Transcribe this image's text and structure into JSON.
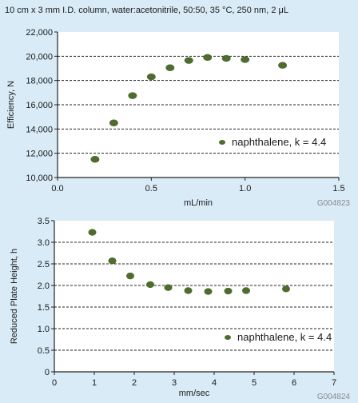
{
  "figure": {
    "title": "10 cm x 3 mm I.D. column, water:acetonitrile, 50:50, 35 °C, 250 nm, 2 μL"
  },
  "colors": {
    "background": "#d9ebf6",
    "plot_area": "#ffffff",
    "marker": "#4f6b2e",
    "axis": "#222222",
    "gridline": "#222222",
    "code_text": "#8a8a8a"
  },
  "chart_data": [
    {
      "type": "scatter",
      "xlabel": "mL/min",
      "ylabel": "Efficiency, N",
      "xlim": [
        0,
        1.5
      ],
      "ylim": [
        10000,
        22000
      ],
      "x_ticks": [
        0,
        0.5,
        1.0,
        1.5
      ],
      "x_tick_labels": [
        "0.0",
        "0.5",
        "1.0",
        "1.5"
      ],
      "y_ticks": [
        10000,
        12000,
        14000,
        16000,
        18000,
        20000,
        22000
      ],
      "y_tick_labels": [
        "10,000",
        "12,000",
        "14,000",
        "16,000",
        "18,000",
        "20,000",
        "22,000"
      ],
      "grid": "horizontal dashed",
      "legend": {
        "label": "naphthalene, k = 4.4",
        "position": "bottom-right"
      },
      "code": "G004823",
      "series": [
        {
          "name": "naphthalene, k = 4.4",
          "x": [
            0.2,
            0.3,
            0.4,
            0.5,
            0.6,
            0.7,
            0.8,
            0.9,
            1.0,
            1.2
          ],
          "y": [
            11500,
            14500,
            16750,
            18300,
            19050,
            19650,
            19900,
            19820,
            19720,
            19250
          ]
        }
      ]
    },
    {
      "type": "scatter",
      "xlabel": "mm/sec",
      "ylabel": "Reduced Plate Height, h",
      "xlim": [
        0,
        7
      ],
      "ylim": [
        0,
        3.5
      ],
      "x_ticks": [
        0,
        1,
        2,
        3,
        4,
        5,
        6,
        7
      ],
      "x_tick_labels": [
        "0",
        "1",
        "2",
        "3",
        "4",
        "5",
        "6",
        "7"
      ],
      "y_ticks": [
        0,
        0.5,
        1.0,
        1.5,
        2.0,
        2.5,
        3.0,
        3.5
      ],
      "y_tick_labels": [
        "0",
        "0.5",
        "1.0",
        "1.5",
        "2.0",
        "2.5",
        "3.0",
        "3.5"
      ],
      "grid": "horizontal dashed",
      "legend": {
        "label": "naphthalene, k = 4.4",
        "position": "bottom-right"
      },
      "code": "G004824",
      "series": [
        {
          "name": "naphthalene, k = 4.4",
          "x": [
            0.95,
            1.45,
            1.9,
            2.4,
            2.85,
            3.35,
            3.85,
            4.35,
            4.8,
            5.8
          ],
          "y": [
            3.23,
            2.57,
            2.22,
            2.02,
            1.95,
            1.88,
            1.86,
            1.87,
            1.88,
            1.92
          ]
        }
      ]
    }
  ]
}
